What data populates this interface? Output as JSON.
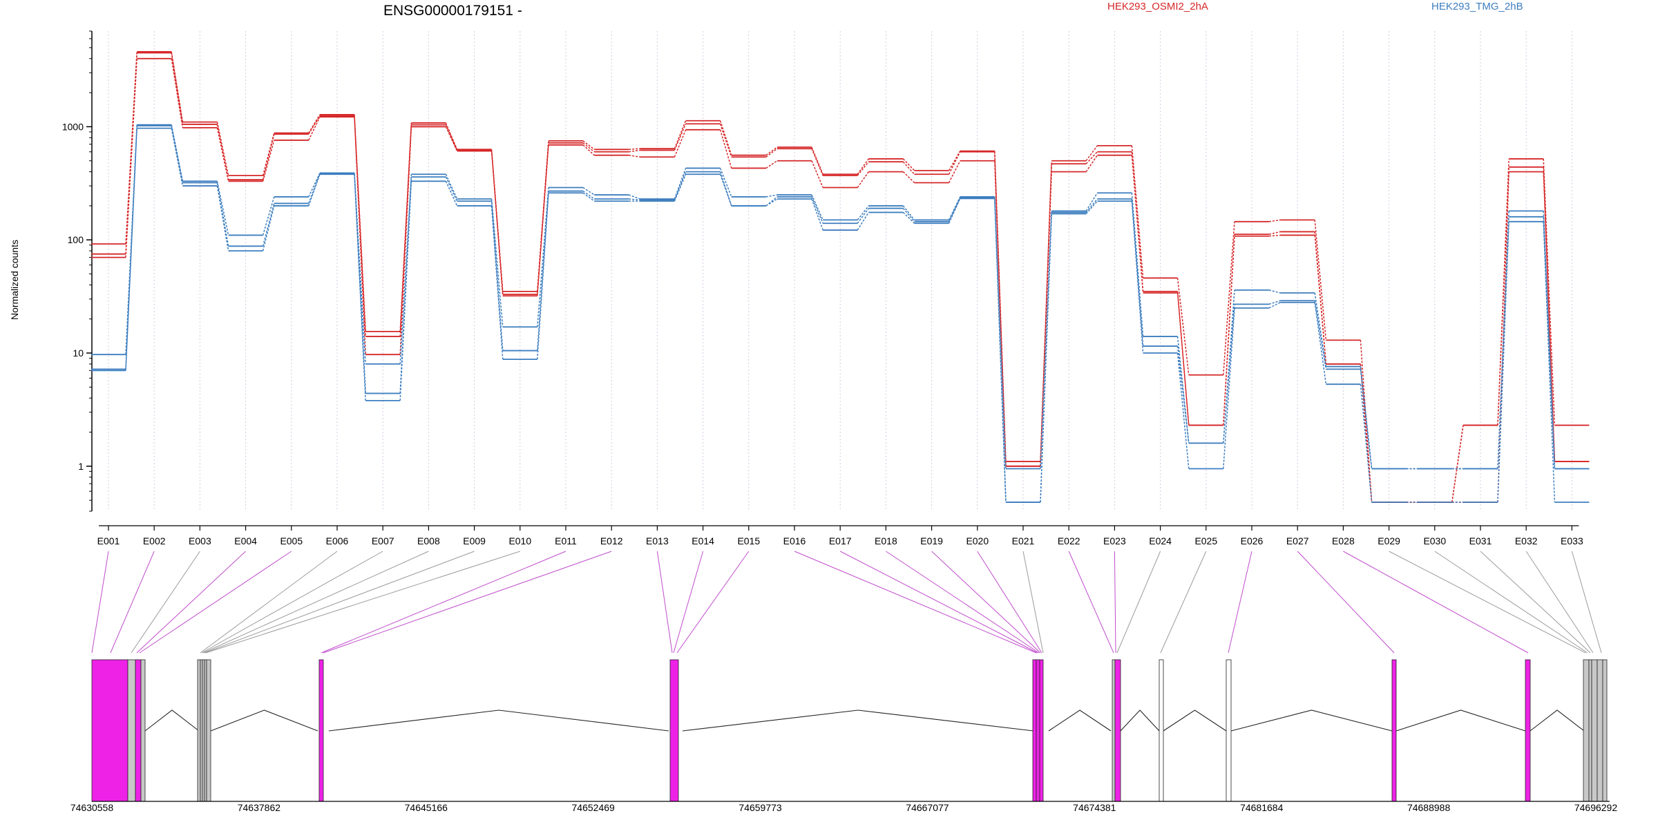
{
  "chart_data": {
    "type": "line",
    "title": "ENSG00000179151 -",
    "ylabel": "Normalized counts",
    "yscale": "log",
    "ylim": [
      0.4,
      7000
    ],
    "yticks": [
      {
        "value": 1,
        "label": "1"
      },
      {
        "value": 10,
        "label": "10"
      },
      {
        "value": 100,
        "label": "100"
      },
      {
        "value": 1000,
        "label": "1000"
      }
    ],
    "legend": [
      {
        "name": "HEK293_OSMI2_2hA",
        "color": "#d62728",
        "position": "top-center"
      },
      {
        "name": "HEK293_TMG_2hB",
        "color": "#3d7ebf",
        "position": "top-right"
      }
    ],
    "categories": [
      "E001",
      "E002",
      "E003",
      "E004",
      "E005",
      "E006",
      "E007",
      "E008",
      "E009",
      "E010",
      "E011",
      "E012",
      "E013",
      "E014",
      "E015",
      "E016",
      "E017",
      "E018",
      "E019",
      "E020",
      "E021",
      "E022",
      "E023",
      "E024",
      "E025",
      "E026",
      "E027",
      "E028",
      "E029",
      "E030",
      "E031",
      "E032",
      "E033"
    ],
    "series": [
      {
        "group": "HEK293_OSMI2_2hA",
        "color": "#d62728",
        "values": [
          92,
          4600,
          1100,
          370,
          880,
          1280,
          15.5,
          1080,
          630,
          35,
          750,
          630,
          640,
          1130,
          560,
          660,
          380,
          520,
          410,
          610,
          1.1,
          500,
          680,
          46,
          6.4,
          145,
          150,
          13,
          0.48,
          0.48,
          2.3,
          520,
          2.3
        ]
      },
      {
        "group": "HEK293_OSMI2_2hA",
        "color": "#d62728",
        "values": [
          75,
          4500,
          1050,
          340,
          860,
          1250,
          14,
          1040,
          620,
          33,
          720,
          600,
          620,
          1060,
          540,
          640,
          370,
          490,
          380,
          600,
          1.0,
          470,
          600,
          35,
          2.3,
          112,
          118,
          8,
          0.48,
          0.48,
          2.3,
          440,
          1.1
        ]
      },
      {
        "group": "HEK293_OSMI2_2hA",
        "color": "#d62728",
        "values": [
          70,
          4000,
          980,
          330,
          760,
          1220,
          9.7,
          1000,
          610,
          32,
          690,
          560,
          540,
          940,
          430,
          500,
          290,
          400,
          320,
          500,
          1.0,
          400,
          560,
          34,
          2.3,
          108,
          110,
          8,
          0.48,
          0.48,
          0.48,
          400,
          1.1
        ]
      },
      {
        "group": "HEK293_TMG_2hB",
        "color": "#3d7ebf",
        "values": [
          9.7,
          1040,
          330,
          110,
          240,
          390,
          4.4,
          380,
          230,
          17,
          290,
          250,
          230,
          430,
          240,
          250,
          150,
          200,
          150,
          240,
          0.95,
          180,
          260,
          14,
          1.6,
          36,
          34,
          7.6,
          0.95,
          0.95,
          0.95,
          180,
          0.95
        ]
      },
      {
        "group": "HEK293_TMG_2hB",
        "color": "#3d7ebf",
        "values": [
          7.2,
          1020,
          320,
          88,
          210,
          385,
          8,
          360,
          220,
          10.5,
          270,
          230,
          225,
          400,
          200,
          240,
          140,
          190,
          145,
          235,
          0.48,
          175,
          230,
          11.5,
          1.6,
          27,
          29,
          7.2,
          0.95,
          0.95,
          0.95,
          160,
          0.95
        ]
      },
      {
        "group": "HEK293_TMG_2hB",
        "color": "#3d7ebf",
        "values": [
          7,
          970,
          300,
          80,
          200,
          380,
          3.8,
          330,
          200,
          8.8,
          260,
          220,
          220,
          380,
          200,
          230,
          122,
          175,
          140,
          232,
          0.48,
          170,
          220,
          10,
          0.95,
          25,
          28,
          5.3,
          0.48,
          0.48,
          0.48,
          145,
          0.48
        ]
      }
    ],
    "grid": "vertical-dotted",
    "gene_model": {
      "coordinate_ticks": [
        "74630558",
        "74637862",
        "74645166",
        "74652469",
        "74659773",
        "74667077",
        "74674381",
        "74681684",
        "74688988",
        "74696292"
      ],
      "colors": {
        "highlighted_exon": "#ee22e6",
        "exon": "#c8c8c8",
        "intron": "#222222"
      }
    }
  }
}
